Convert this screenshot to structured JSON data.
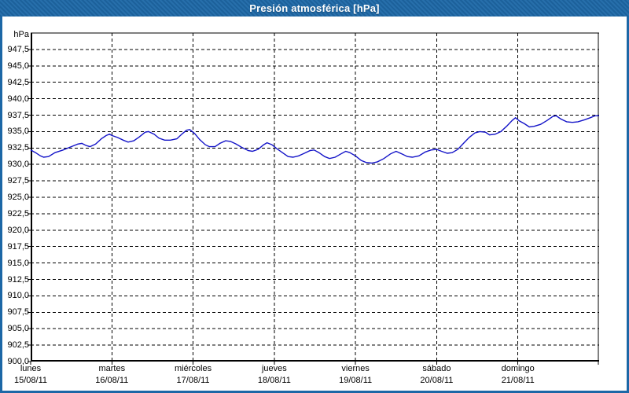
{
  "window": {
    "title": "Presión atmosférica [hPa]"
  },
  "chart_data": {
    "type": "line",
    "title": "Presión atmosférica [hPa]",
    "unit_label": "hPa",
    "legend": "none",
    "grid": "dashed",
    "colors": {
      "titlebar": "#1e69a8",
      "window_border": "#1c67a6",
      "plot_background": "#ffffff",
      "grid_line": "#000000",
      "series_line": "#1414c8"
    },
    "y_axis": {
      "min": 900,
      "max": 950,
      "grid_step": 2.5,
      "tick_labels": [
        "947,5",
        "945,0",
        "942,5",
        "940,0",
        "937,5",
        "935,0",
        "932,5",
        "930,0",
        "927,5",
        "925,0",
        "922,5",
        "920,0",
        "917,5",
        "915,0",
        "912,5",
        "910,0",
        "907,5",
        "905,0",
        "902,5",
        "900,0"
      ],
      "tick_values": [
        947.5,
        945.0,
        942.5,
        940.0,
        937.5,
        935.0,
        932.5,
        930.0,
        927.5,
        925.0,
        922.5,
        920.0,
        917.5,
        915.0,
        912.5,
        910.0,
        907.5,
        905.0,
        902.5,
        900.0
      ]
    },
    "x_axis": {
      "range_days": [
        0,
        7
      ],
      "days": [
        {
          "name": "lunes",
          "date": "15/08/11"
        },
        {
          "name": "martes",
          "date": "16/08/11"
        },
        {
          "name": "miércoles",
          "date": "17/08/11"
        },
        {
          "name": "jueves",
          "date": "18/08/11"
        },
        {
          "name": "viernes",
          "date": "19/08/11"
        },
        {
          "name": "sábado",
          "date": "20/08/11"
        },
        {
          "name": "domingo",
          "date": "21/08/11"
        }
      ]
    },
    "series": [
      {
        "name": "Presión atmosférica",
        "color": "#1414c8",
        "points": [
          [
            0.0,
            932.2
          ],
          [
            0.06,
            931.8
          ],
          [
            0.12,
            931.3
          ],
          [
            0.16,
            931.1
          ],
          [
            0.22,
            931.2
          ],
          [
            0.3,
            931.8
          ],
          [
            0.4,
            932.2
          ],
          [
            0.5,
            932.7
          ],
          [
            0.58,
            933.1
          ],
          [
            0.63,
            933.2
          ],
          [
            0.68,
            932.9
          ],
          [
            0.73,
            932.7
          ],
          [
            0.8,
            933.1
          ],
          [
            0.87,
            933.9
          ],
          [
            0.93,
            934.4
          ],
          [
            0.97,
            934.6
          ],
          [
            1.0,
            934.4
          ],
          [
            1.07,
            934.1
          ],
          [
            1.14,
            933.7
          ],
          [
            1.2,
            933.4
          ],
          [
            1.27,
            933.6
          ],
          [
            1.34,
            934.2
          ],
          [
            1.41,
            934.9
          ],
          [
            1.45,
            935.0
          ],
          [
            1.52,
            934.6
          ],
          [
            1.58,
            934.0
          ],
          [
            1.65,
            933.7
          ],
          [
            1.72,
            933.7
          ],
          [
            1.8,
            933.9
          ],
          [
            1.87,
            934.7
          ],
          [
            1.92,
            935.2
          ],
          [
            1.96,
            935.3
          ],
          [
            2.02,
            934.7
          ],
          [
            2.08,
            933.8
          ],
          [
            2.15,
            933.0
          ],
          [
            2.2,
            932.7
          ],
          [
            2.27,
            932.7
          ],
          [
            2.33,
            933.2
          ],
          [
            2.4,
            933.6
          ],
          [
            2.46,
            933.5
          ],
          [
            2.53,
            933.1
          ],
          [
            2.6,
            932.6
          ],
          [
            2.68,
            932.1
          ],
          [
            2.73,
            932.0
          ],
          [
            2.8,
            932.3
          ],
          [
            2.87,
            933.0
          ],
          [
            2.91,
            933.3
          ],
          [
            2.97,
            933.0
          ],
          [
            3.03,
            932.4
          ],
          [
            3.1,
            931.8
          ],
          [
            3.17,
            931.2
          ],
          [
            3.23,
            931.1
          ],
          [
            3.3,
            931.3
          ],
          [
            3.37,
            931.7
          ],
          [
            3.44,
            932.1
          ],
          [
            3.49,
            932.2
          ],
          [
            3.55,
            931.8
          ],
          [
            3.62,
            931.2
          ],
          [
            3.68,
            930.9
          ],
          [
            3.75,
            931.1
          ],
          [
            3.82,
            931.6
          ],
          [
            3.88,
            932.0
          ],
          [
            3.93,
            931.8
          ],
          [
            4.0,
            931.3
          ],
          [
            4.07,
            930.6
          ],
          [
            4.13,
            930.3
          ],
          [
            4.2,
            930.2
          ],
          [
            4.27,
            930.4
          ],
          [
            4.35,
            930.9
          ],
          [
            4.43,
            931.6
          ],
          [
            4.5,
            932.0
          ],
          [
            4.57,
            931.6
          ],
          [
            4.64,
            931.2
          ],
          [
            4.7,
            931.1
          ],
          [
            4.78,
            931.3
          ],
          [
            4.86,
            931.9
          ],
          [
            4.93,
            932.2
          ],
          [
            5.0,
            932.3
          ],
          [
            5.06,
            932.0
          ],
          [
            5.13,
            931.7
          ],
          [
            5.19,
            931.8
          ],
          [
            5.26,
            932.3
          ],
          [
            5.33,
            933.2
          ],
          [
            5.4,
            934.1
          ],
          [
            5.47,
            934.8
          ],
          [
            5.53,
            935.0
          ],
          [
            5.6,
            934.9
          ],
          [
            5.65,
            934.5
          ],
          [
            5.72,
            934.6
          ],
          [
            5.79,
            935.0
          ],
          [
            5.86,
            935.8
          ],
          [
            5.93,
            936.7
          ],
          [
            5.97,
            937.1
          ],
          [
            6.02,
            936.6
          ],
          [
            6.08,
            936.2
          ],
          [
            6.14,
            935.7
          ],
          [
            6.2,
            935.8
          ],
          [
            6.28,
            936.1
          ],
          [
            6.36,
            936.7
          ],
          [
            6.43,
            937.3
          ],
          [
            6.47,
            937.4
          ],
          [
            6.53,
            936.9
          ],
          [
            6.6,
            936.5
          ],
          [
            6.67,
            936.4
          ],
          [
            6.74,
            936.5
          ],
          [
            6.82,
            936.8
          ],
          [
            6.89,
            937.1
          ],
          [
            6.95,
            937.4
          ],
          [
            7.0,
            937.4
          ]
        ]
      }
    ]
  }
}
